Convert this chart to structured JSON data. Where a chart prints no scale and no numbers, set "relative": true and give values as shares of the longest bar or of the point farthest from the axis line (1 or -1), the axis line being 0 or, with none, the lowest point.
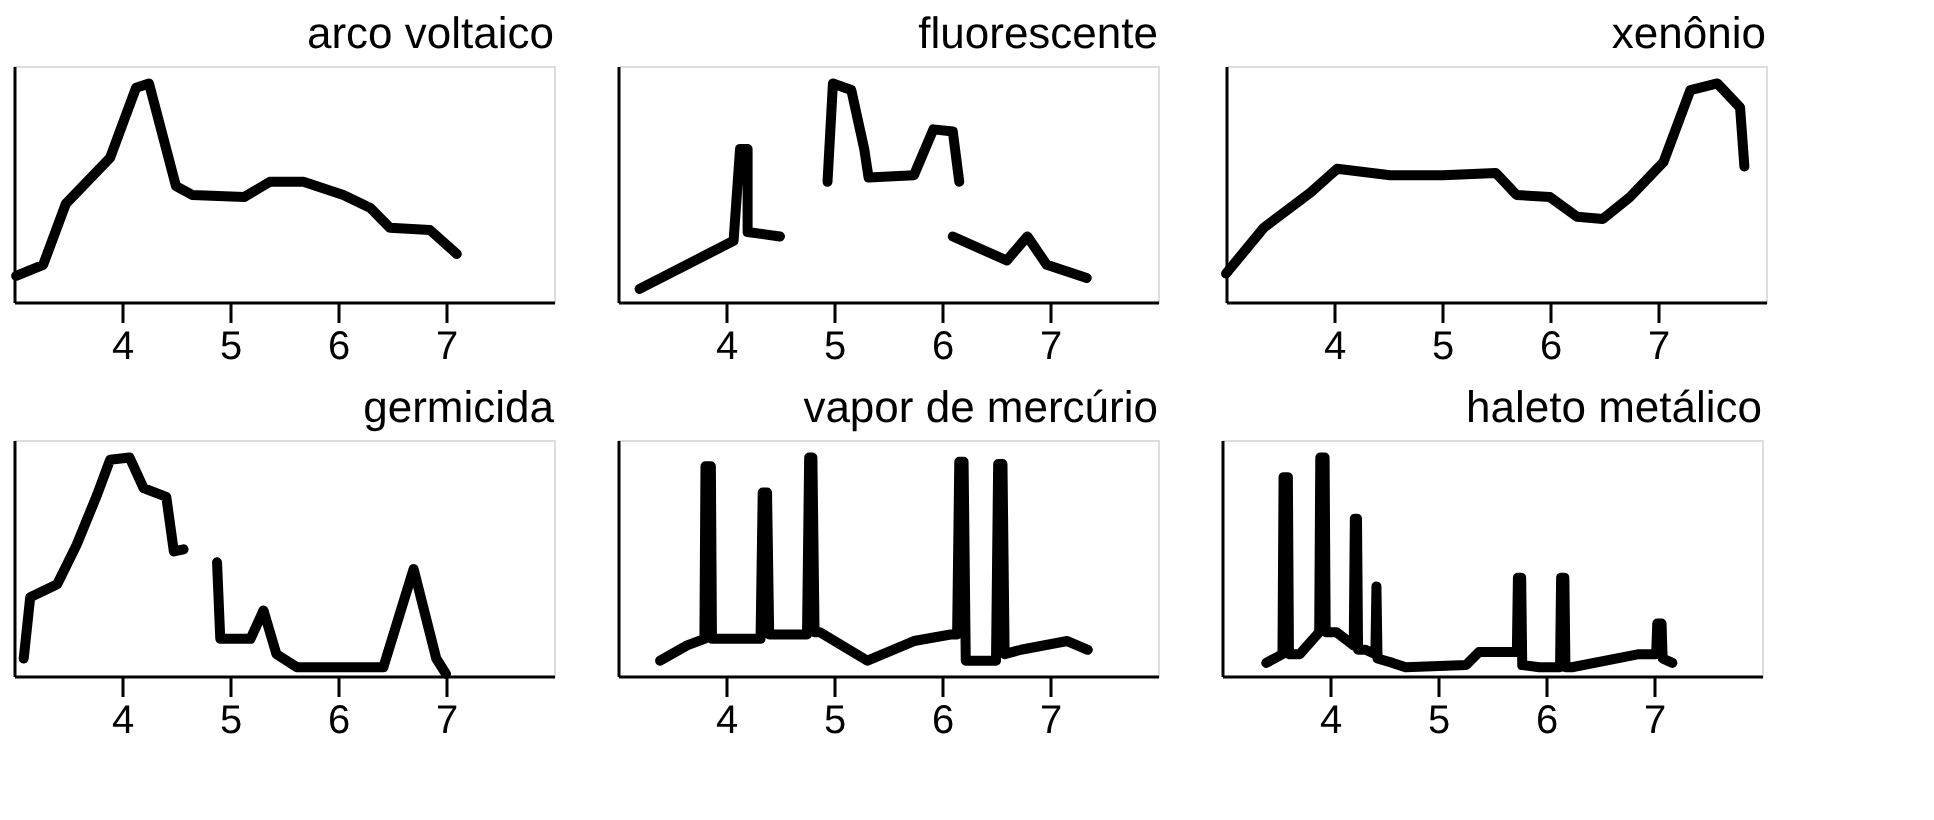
{
  "chart_data": [
    {
      "type": "line",
      "title": "arco voltaico",
      "relative": true,
      "xlim": [
        3,
        8
      ],
      "xticks": [
        4,
        5,
        6,
        7
      ],
      "grid": false,
      "series": [
        {
          "color": "#000000",
          "x": [
            3.02,
            3.27,
            3.48,
            3.89,
            4.13,
            4.25,
            4.5,
            4.65,
            5.13,
            5.37,
            5.68,
            6.05,
            6.3,
            6.48,
            6.85,
            7.1
          ],
          "values": [
            0.12,
            0.17,
            0.45,
            0.66,
            0.98,
            1.0,
            0.53,
            0.49,
            0.48,
            0.55,
            0.55,
            0.49,
            0.43,
            0.34,
            0.33,
            0.22
          ]
        }
      ]
    },
    {
      "type": "line",
      "title": "fluorescente",
      "relative": true,
      "xlim": [
        3,
        8
      ],
      "xticks": [
        4,
        5,
        6,
        7
      ],
      "grid": false,
      "series": [
        {
          "color": "#000000",
          "x": [
            3.2,
            4.07,
            4.13,
            4.2,
            4.2,
            4.5,
            4.7,
            4.94,
            4.99,
            5.16,
            5.28,
            5.32,
            5.74,
            5.92,
            6.1,
            6.16,
            6.13,
            6.1,
            6.6,
            6.79,
            6.97,
            7.34
          ],
          "values": [
            0.06,
            0.28,
            0.7,
            0.7,
            0.32,
            0.3,
            null,
            0.55,
            1.0,
            0.97,
            0.7,
            0.57,
            0.58,
            0.79,
            0.78,
            0.55,
            null,
            0.3,
            0.19,
            0.3,
            0.17,
            0.11
          ]
        }
      ]
    },
    {
      "type": "line",
      "title": "xenônio",
      "relative": true,
      "xlim": [
        3,
        8
      ],
      "xticks": [
        4,
        5,
        6,
        7
      ],
      "grid": false,
      "series": [
        {
          "color": "#000000",
          "x": [
            3.0,
            3.35,
            3.78,
            4.03,
            4.52,
            5.01,
            5.5,
            5.69,
            6.0,
            6.25,
            6.49,
            6.74,
            7.05,
            7.3,
            7.55,
            7.76,
            7.8
          ],
          "values": [
            0.13,
            0.34,
            0.5,
            0.61,
            0.58,
            0.58,
            0.59,
            0.49,
            0.48,
            0.39,
            0.38,
            0.48,
            0.64,
            0.97,
            1.0,
            0.89,
            0.62
          ]
        }
      ]
    },
    {
      "type": "line",
      "title": "germicida",
      "relative": true,
      "xlim": [
        3,
        8
      ],
      "xticks": [
        4,
        5,
        6,
        7
      ],
      "grid": false,
      "series": [
        {
          "color": "#000000",
          "x": [
            3.09,
            3.15,
            3.4,
            3.58,
            3.77,
            3.89,
            4.07,
            4.2,
            4.41,
            4.48,
            4.57,
            4.7,
            4.88,
            4.91,
            5.19,
            5.31,
            5.43,
            5.62,
            6.42,
            6.7,
            6.91,
            7.0
          ],
          "values": [
            0.08,
            0.36,
            0.42,
            0.6,
            0.83,
            0.99,
            1.0,
            0.86,
            0.82,
            0.57,
            0.58,
            null,
            0.52,
            0.17,
            0.17,
            0.3,
            0.1,
            0.04,
            0.04,
            0.49,
            0.08,
            0.01
          ]
        }
      ]
    },
    {
      "type": "line",
      "title": "vapor de mercúrio",
      "relative": true,
      "xlim": [
        3,
        8
      ],
      "xticks": [
        4,
        5,
        6,
        7
      ],
      "grid": false,
      "series": [
        {
          "color": "#000000",
          "x": [
            3.39,
            3.64,
            3.8,
            3.81,
            3.86,
            3.87,
            4.13,
            4.32,
            4.34,
            4.38,
            4.4,
            4.47,
            4.75,
            4.77,
            4.8,
            4.82,
            4.87,
            5.31,
            5.74,
            6.08,
            6.14,
            6.16,
            6.2,
            6.22,
            6.36,
            6.5,
            6.52,
            6.56,
            6.58,
            6.73,
            7.16,
            7.35
          ],
          "values": [
            0.07,
            0.14,
            0.17,
            0.96,
            0.96,
            0.17,
            0.17,
            0.17,
            0.84,
            0.84,
            0.19,
            0.19,
            0.19,
            1.0,
            1.0,
            0.2,
            0.2,
            0.07,
            0.16,
            0.19,
            0.19,
            0.98,
            0.98,
            0.07,
            0.07,
            0.07,
            0.97,
            0.97,
            0.1,
            0.12,
            0.16,
            0.12
          ]
        }
      ]
    },
    {
      "type": "line",
      "title": "haleto metálico",
      "relative": true,
      "xlim": [
        3,
        8
      ],
      "xticks": [
        4,
        5,
        6,
        7
      ],
      "grid": false,
      "series": [
        {
          "color": "#000000",
          "x": [
            3.41,
            3.56,
            3.57,
            3.61,
            3.62,
            3.72,
            3.9,
            3.91,
            3.95,
            3.96,
            4.06,
            4.22,
            4.23,
            4.25,
            4.26,
            4.33,
            4.42,
            4.43,
            4.44,
            4.58,
            4.7,
            5.26,
            5.38,
            5.63,
            5.73,
            5.74,
            5.77,
            5.78,
            5.94,
            6.13,
            6.14,
            6.17,
            6.18,
            6.24,
            6.86,
            7.02,
            7.03,
            7.07,
            7.08,
            7.17
          ],
          "values": [
            0.06,
            0.1,
            0.91,
            0.91,
            0.1,
            0.1,
            0.2,
            1.0,
            1.0,
            0.2,
            0.2,
            0.14,
            0.72,
            0.72,
            0.12,
            0.12,
            0.1,
            0.41,
            0.08,
            0.06,
            0.04,
            0.05,
            0.11,
            0.11,
            0.11,
            0.45,
            0.45,
            0.05,
            0.04,
            0.04,
            0.45,
            0.45,
            0.04,
            0.04,
            0.1,
            0.1,
            0.24,
            0.24,
            0.08,
            0.06
          ]
        }
      ]
    }
  ]
}
